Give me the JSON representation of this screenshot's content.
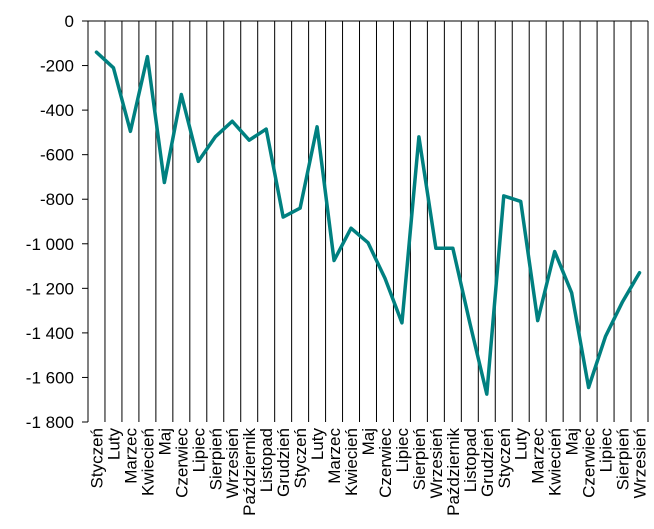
{
  "chart_data": {
    "type": "line",
    "title": "",
    "xlabel": "",
    "ylabel": "",
    "ylim": [
      -1800,
      0
    ],
    "y_ticks": [
      0,
      -200,
      -400,
      -600,
      -800,
      -1000,
      -1200,
      -1400,
      -1600,
      -1800
    ],
    "y_tick_labels": [
      "0",
      "-200",
      "-400",
      "-600",
      "-800",
      "-1 000",
      "-1 200",
      "-1 400",
      "-1 600",
      "-1 800"
    ],
    "grid": {
      "vertical": true,
      "horizontal": false
    },
    "legend": "none",
    "series_color": "#008080",
    "categories": [
      "Styczeń",
      "Luty",
      "Marzec",
      "Kwiecień",
      "Maj",
      "Czerwiec",
      "Lipiec",
      "Sierpień",
      "Wrzesień",
      "Październik",
      "Listopad",
      "Grudzień",
      "Styczeń",
      "Luty",
      "Marzec",
      "Kwiecień",
      "Maj",
      "Czerwiec",
      "Lipiec",
      "Sierpień",
      "Wrzesień",
      "Październik",
      "Listopad",
      "Grudzień",
      "Styczeń",
      "Luty",
      "Marzec",
      "Kwiecień",
      "Maj",
      "Czerwiec",
      "Lipiec",
      "Sierpień",
      "Wrzesień"
    ],
    "series": [
      {
        "values": [
          -140,
          -210,
          -495,
          -160,
          -725,
          -330,
          -630,
          -520,
          -450,
          -535,
          -485,
          -880,
          -840,
          -475,
          -1075,
          -930,
          -995,
          -1155,
          -1355,
          -520,
          -1020,
          -1020,
          -1355,
          -1675,
          -785,
          -810,
          -1345,
          -1035,
          -1220,
          -1645,
          -1415,
          -1260,
          -1130
        ]
      }
    ]
  }
}
